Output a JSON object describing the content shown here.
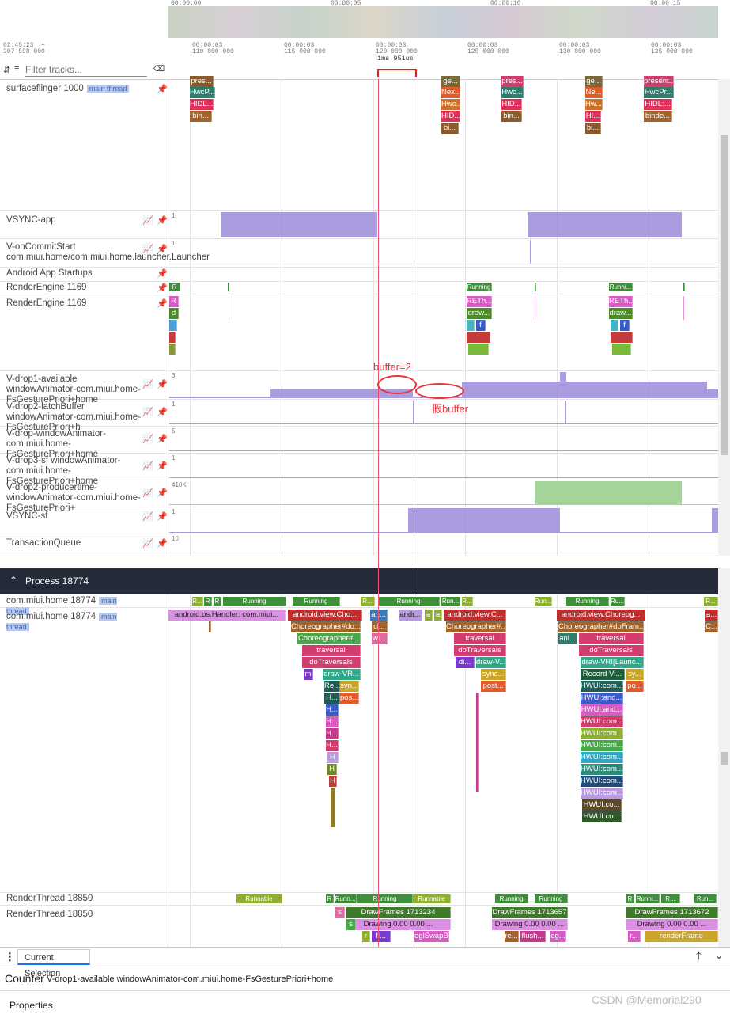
{
  "overview": {
    "ticks": [
      "00:00:00",
      "00:00:05",
      "00:00:10",
      "00:00:15"
    ]
  },
  "ruler": {
    "origin_time": "02:45:23",
    "origin_plus": "+",
    "origin_ns": "307 598 000",
    "ticks": [
      {
        "top": "00:00:03",
        "bottom": "110 000 000"
      },
      {
        "top": "00:00:03",
        "bottom": "115 000 000"
      },
      {
        "top": "00:00:03",
        "bottom": "120 000 000"
      },
      {
        "top": "00:00:03",
        "bottom": "125 000 000"
      },
      {
        "top": "00:00:03",
        "bottom": "130 000 000"
      },
      {
        "top": "00:00:03",
        "bottom": "135 000 000"
      }
    ],
    "selection_label": "1ms 951us"
  },
  "filter": {
    "placeholder": "Filter tracks..."
  },
  "badges": {
    "main_thread": "main thread"
  },
  "tracks": {
    "surfaceflinger": "surfaceflinger 1000",
    "vsync_app": "VSYNC-app",
    "on_commit": "V-onCommitStart com.miui.home/com.miui.home.launcher.Launcher",
    "app_startups": "Android App Startups",
    "render_engine_a": "RenderEngine 1169",
    "render_engine_b": "RenderEngine 1169",
    "drop1": "V-drop1-available windowAnimator-com.miui.home-FsGesturePriori+home",
    "drop2_latch": "V-drop2-latchBuffer windowAnimator-com.miui.home-FsGesturePriori+h",
    "drop_window": "V-drop-windowAnimator-com.miui.home-FsGesturePriori+home",
    "drop3_sf": "V-drop3-sf windowAnimator-com.miui.home-FsGesturePriori+home",
    "drop2_producer": "V-drop2-producertime-windowAnimator-com.miui.home-FsGesturePriori+",
    "vsync_sf": "VSYNC-sf",
    "transaction_queue": "TransactionQueue",
    "process_header": "Process 18774",
    "home_a": "com.miui.home 18774",
    "home_b": "com.miui.home 18774",
    "render_thread_a": "RenderThread 18850",
    "render_thread_b": "RenderThread 18850"
  },
  "counter_maxes": {
    "vsync_app": "1",
    "on_commit": "1",
    "drop1": "3",
    "drop2_latch": "1",
    "drop_window": "5",
    "drop3_sf": "1",
    "drop2_producer": "410K",
    "vsync_sf": "1",
    "transaction_queue": "10"
  },
  "annotations": {
    "buffer2": "buffer=2",
    "fake_buffer": "假buffer"
  },
  "sf_slices": {
    "pres1": "pres...",
    "hwc1": "HwcP...",
    "hidl1": "HIDL...",
    "bin1": "bin...",
    "ge2": "ge...",
    "nex2": "Nex...",
    "hwc2": "Hwc...",
    "hid2": "HID...",
    "bi2": "bi...",
    "pres3": "pres...",
    "hwc3": "Hwc...",
    "hid3": "HID...",
    "bin3": "bin...",
    "ge4": "ge...",
    "ne4": "Ne...",
    "hw4": "Hw...",
    "hi4": "HI...",
    "bi4": "bi...",
    "present5": "present...",
    "hwc5": "HwcPr...",
    "hidl5": "HIDL:...",
    "binde5": "binde..."
  },
  "re_slices": {
    "r": "R",
    "running1": "Running",
    "running2": "Runni...",
    "r_big": "R",
    "d": "d",
    "reth1": "RETh...",
    "draw1": "draw...",
    "f1": "f",
    "reth2": "RETh...",
    "draw2": "draw...",
    "f2": "f"
  },
  "home_state": {
    "r1": "R...",
    "r2": "R",
    "r3": "R",
    "run1": "Running",
    "run2": "Running",
    "r4": "R...",
    "run3": "Running",
    "run4": "Run...",
    "r5": "R...",
    "run5": "Run...",
    "run6": "Running",
    "ru7": "Ru...",
    "r8": "R..."
  },
  "home_slices": {
    "handler": "android.os.Handler: com.miui...",
    "choreo_view": "android.view.Cho...",
    "choreo_do": "Choreographer#do...",
    "choreo2": "Choreographer#...",
    "traversal": "traversal",
    "dotraversals": "doTraversals",
    "m": "m",
    "draw_vr": "draw-VR...",
    "re": "Re...",
    "syn": "syn...",
    "h1": "H...",
    "pos": "pos...",
    "h2": "H...",
    "h3": "H...",
    "h4": "H...",
    "h5": "H...",
    "h6": "H",
    "h7": "H",
    "h8": "H",
    "an": "an...",
    "cl": "cl...",
    "wi": "wi...",
    "andr": "andr...",
    "a1": "a",
    "a2": "a",
    "view_c2": "android.view.C...",
    "choreo_b": "Choreographer#...",
    "traversal2": "traversal",
    "dotrav2": "doTraversals",
    "di": "di...",
    "draw_v2": "draw-V...",
    "sync2": "sync...",
    "post2": "post...",
    "view_choreo3": "android.view.Choreog...",
    "choreo_fram": "Choreographer#doFram...",
    "ani": "ani...",
    "traversal3": "traversal",
    "dotrav3": "doTraversals",
    "draw_vr3": "draw-VRI[Launc...",
    "record": "Record Vi...",
    "sy": "sy...",
    "hwui1": "HWUI:com...",
    "po": "po...",
    "hwui_and1": "HWUI:and...",
    "hwui_and2": "HWUI:and...",
    "hwui2": "HWUI:com...",
    "hwui3": "HWUI:com...",
    "hwui4": "HWUI:com...",
    "hwui5": "HWUI:com...",
    "hwui6": "HWUI:com...",
    "hwui7": "HWUI:com...",
    "hwui8": "HWUI:com...",
    "hwui9": "HWUI:co...",
    "hwui10": "HWUI:co...",
    "a_end": "a...",
    "c_end": "C..."
  },
  "rt_state": {
    "runnable1": "Runnable",
    "r1": "R",
    "run1": "Runn...",
    "running2": "Running",
    "runnable3": "Runnable",
    "running4": "Running",
    "running5": "Running",
    "r6": "R",
    "runni6": "Runni...",
    "r7": "R...",
    "run8": "Run..."
  },
  "rt_slices": {
    "s": "s",
    "df1": "DrawFrames 1713234",
    "drawing1": "Drawing  0.00  0.00 ...",
    "s2": "s",
    "r": "r",
    "fl": "fl...",
    "egl": "eglSwapBuffe...",
    "df2": "DrawFrames 1713657",
    "drawing2": "Drawing  0.00  0.00 ...",
    "re": "re...",
    "flush": "flush...",
    "eg": "eg...",
    "df3": "DrawFrames 1713672",
    "drawing3": "Drawing  0.00  0.00 ...",
    "r3": "r...",
    "renderframe": "renderFrame"
  },
  "bottom": {
    "tab": "Current Selection",
    "kind": "Counter",
    "counter_name": "V-drop1-available windowAnimator-com.miui.home-FsGesturePriori+home",
    "properties": "Properties",
    "watermark": "CSDN @Memorial290"
  },
  "colors": {
    "counter": "#9b8bd8",
    "green_counter": "#a5d49a",
    "annotation": "#e8343c",
    "process_bar": "#262b3a"
  }
}
